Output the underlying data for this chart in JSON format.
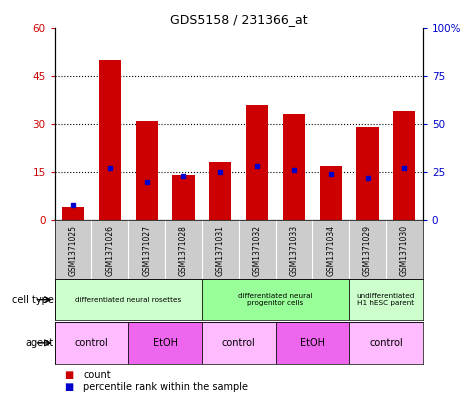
{
  "title": "GDS5158 / 231366_at",
  "samples": [
    "GSM1371025",
    "GSM1371026",
    "GSM1371027",
    "GSM1371028",
    "GSM1371031",
    "GSM1371032",
    "GSM1371033",
    "GSM1371034",
    "GSM1371029",
    "GSM1371030"
  ],
  "counts": [
    4,
    50,
    31,
    14,
    18,
    36,
    33,
    17,
    29,
    34
  ],
  "percentile_ranks": [
    8,
    27,
    20,
    23,
    25,
    28,
    26,
    24,
    22,
    27
  ],
  "ylim_left": [
    0,
    60
  ],
  "ylim_right": [
    0,
    100
  ],
  "yticks_left": [
    0,
    15,
    30,
    45,
    60
  ],
  "yticks_right": [
    0,
    25,
    50,
    75,
    100
  ],
  "ytick_labels_right": [
    "0",
    "25",
    "50",
    "75",
    "100%"
  ],
  "bar_color": "#cc0000",
  "percentile_color": "#0000cc",
  "cell_type_groups": [
    {
      "label": "differentiated neural rosettes",
      "start": 0,
      "end": 4,
      "color": "#ccffcc"
    },
    {
      "label": "differentiated neural\nprogenitor cells",
      "start": 4,
      "end": 8,
      "color": "#99ff99"
    },
    {
      "label": "undifferentiated\nH1 hESC parent",
      "start": 8,
      "end": 10,
      "color": "#ccffcc"
    }
  ],
  "agent_groups": [
    {
      "label": "control",
      "start": 0,
      "end": 2,
      "color": "#ffbbff"
    },
    {
      "label": "EtOH",
      "start": 2,
      "end": 4,
      "color": "#ee66ee"
    },
    {
      "label": "control",
      "start": 4,
      "end": 6,
      "color": "#ffbbff"
    },
    {
      "label": "EtOH",
      "start": 6,
      "end": 8,
      "color": "#ee66ee"
    },
    {
      "label": "control",
      "start": 8,
      "end": 10,
      "color": "#ffbbff"
    }
  ],
  "background_color": "#ffffff",
  "tick_label_color_left": "#cc0000",
  "tick_label_color_right": "#0000cc",
  "sample_bg_color": "#cccccc",
  "legend_count_color": "#cc0000",
  "legend_pct_color": "#0000cc"
}
